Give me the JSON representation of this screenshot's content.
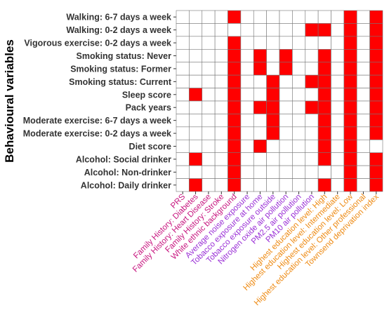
{
  "chart_data": {
    "type": "heatmap",
    "ylabel": "Behavioural variables",
    "xlabel": "",
    "title": "",
    "rows": [
      "Walking: 6-7 days a week",
      "Walking: 0-2 days a week",
      "Vigorous exercise: 0-2 days a week",
      "Smoking status: Never",
      "Smoking status: Former",
      "Smoking status: Current",
      "Sleep score",
      "Pack years",
      "Moderate exercise: 6-7 days a week",
      "Moderate exercise: 0-2 days a week",
      "Diet score",
      "Alcohol: Social drinker",
      "Alcohol: Non-drinker",
      "Alcohol: Daily drinker"
    ],
    "columns": [
      {
        "label": "PRS",
        "group": "genetic"
      },
      {
        "label": "Family History: Diabetes",
        "group": "genetic"
      },
      {
        "label": "Family History: Heart Disease",
        "group": "genetic"
      },
      {
        "label": "Family History: Stroke",
        "group": "genetic"
      },
      {
        "label": "White ethnic background",
        "group": "genetic"
      },
      {
        "label": "Average noise exposure",
        "group": "environmental"
      },
      {
        "label": "Tobacco exposure at home",
        "group": "environmental"
      },
      {
        "label": "Tobacco exposure outside",
        "group": "environmental"
      },
      {
        "label": "Nitrogen oxide air pollution",
        "group": "environmental"
      },
      {
        "label": "PM2.5 air pollution",
        "group": "environmental"
      },
      {
        "label": "PM10 air pollution",
        "group": "environmental"
      },
      {
        "label": "Highest education level: High",
        "group": "socioeconomic"
      },
      {
        "label": "Highest education level: Intermediate",
        "group": "socioeconomic"
      },
      {
        "label": "Highest education level: Low",
        "group": "socioeconomic"
      },
      {
        "label": "Highest education level: Other professional",
        "group": "socioeconomic"
      },
      {
        "label": "Townsend deprivation index",
        "group": "socioeconomic"
      }
    ],
    "matrix": [
      [
        0,
        0,
        0,
        0,
        1,
        0,
        0,
        0,
        0,
        0,
        0,
        0,
        0,
        1,
        0,
        1
      ],
      [
        0,
        0,
        0,
        0,
        0,
        0,
        0,
        0,
        0,
        0,
        1,
        1,
        0,
        1,
        0,
        1
      ],
      [
        0,
        0,
        0,
        0,
        1,
        0,
        0,
        0,
        0,
        0,
        0,
        0,
        0,
        1,
        0,
        1
      ],
      [
        0,
        0,
        0,
        0,
        1,
        0,
        1,
        0,
        1,
        0,
        0,
        1,
        0,
        1,
        0,
        1
      ],
      [
        0,
        0,
        0,
        0,
        1,
        0,
        1,
        0,
        1,
        0,
        0,
        1,
        0,
        1,
        0,
        1
      ],
      [
        0,
        0,
        0,
        0,
        1,
        0,
        0,
        1,
        0,
        0,
        1,
        1,
        0,
        1,
        0,
        1
      ],
      [
        0,
        1,
        0,
        0,
        1,
        0,
        0,
        1,
        0,
        0,
        0,
        1,
        0,
        1,
        0,
        1
      ],
      [
        0,
        0,
        0,
        0,
        1,
        0,
        1,
        1,
        0,
        0,
        1,
        1,
        0,
        1,
        0,
        1
      ],
      [
        0,
        0,
        0,
        0,
        1,
        0,
        0,
        1,
        0,
        0,
        0,
        1,
        0,
        1,
        0,
        1
      ],
      [
        0,
        0,
        0,
        0,
        1,
        0,
        0,
        1,
        0,
        0,
        0,
        1,
        0,
        1,
        0,
        1
      ],
      [
        0,
        0,
        0,
        0,
        1,
        0,
        1,
        0,
        0,
        0,
        0,
        1,
        0,
        1,
        0,
        0
      ],
      [
        0,
        1,
        0,
        0,
        1,
        0,
        0,
        0,
        0,
        0,
        0,
        1,
        0,
        1,
        0,
        1
      ],
      [
        0,
        0,
        0,
        0,
        1,
        0,
        0,
        0,
        0,
        0,
        0,
        0,
        0,
        1,
        0,
        1
      ],
      [
        0,
        1,
        0,
        0,
        1,
        0,
        0,
        0,
        0,
        0,
        0,
        1,
        0,
        1,
        0,
        1
      ]
    ],
    "cell_colors": {
      "on": "#ff0000",
      "off": "#ffffff",
      "grid": "#777777"
    },
    "group_colors": {
      "genetic": "#c7157f",
      "environmental": "#9a2fd6",
      "socioeconomic": "#ee8a12"
    },
    "legend": "none",
    "grid": true
  }
}
